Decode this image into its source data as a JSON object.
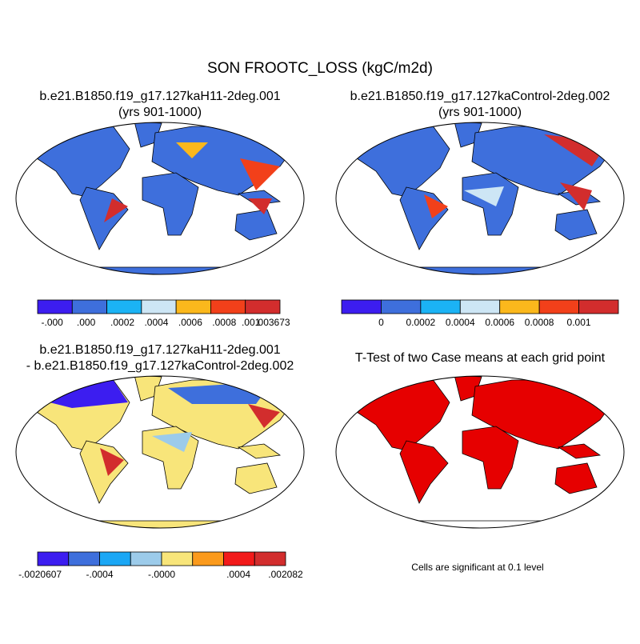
{
  "title": "SON FROOTC_LOSS (kgC/m2d)",
  "panels": [
    {
      "title_lines": [
        "b.e21.B1850.f19_g17.127kaH11-2deg.001",
        "(yrs 901-1000)"
      ],
      "colorbar": {
        "colors": [
          "#3c1df0",
          "#3e6fdc",
          "#1bb3f5",
          "#cde6f5",
          "#fbb81c",
          "#f2401a",
          "#d22d2d"
        ],
        "labels": [
          "-.000",
          ".000",
          ".0002",
          ".0004",
          ".0006",
          ".0008",
          ".001",
          ".003673"
        ]
      }
    },
    {
      "title_lines": [
        "b.e21.B1850.f19_g17.127kaControl-2deg.002",
        "(yrs 901-1000)"
      ],
      "colorbar": {
        "colors": [
          "#3c1df0",
          "#3e6fdc",
          "#1bb3f5",
          "#cde6f5",
          "#fbb81c",
          "#f2401a",
          "#d22d2d"
        ],
        "labels": [
          "0",
          "0.0002",
          "0.0004",
          "0.0006",
          "0.0008",
          "0.001"
        ]
      }
    },
    {
      "title_lines": [
        "b.e21.B1850.f19_g17.127kaH11-2deg.001",
        "- b.e21.B1850.f19_g17.127kaControl-2deg.002"
      ],
      "colorbar": {
        "colors": [
          "#3c1df0",
          "#3e6fdc",
          "#1ba7f5",
          "#9ccbea",
          "#f8e57a",
          "#fb9a1c",
          "#f21a1a",
          "#d22d2d"
        ],
        "labels": [
          "-.0020607",
          "-.0004",
          "-.0000",
          ".0004",
          ".002082"
        ]
      }
    },
    {
      "title_lines": [
        "T-Test of two Case means at each grid point"
      ]
    }
  ],
  "note": "Cells are significant at 0.1 level"
}
